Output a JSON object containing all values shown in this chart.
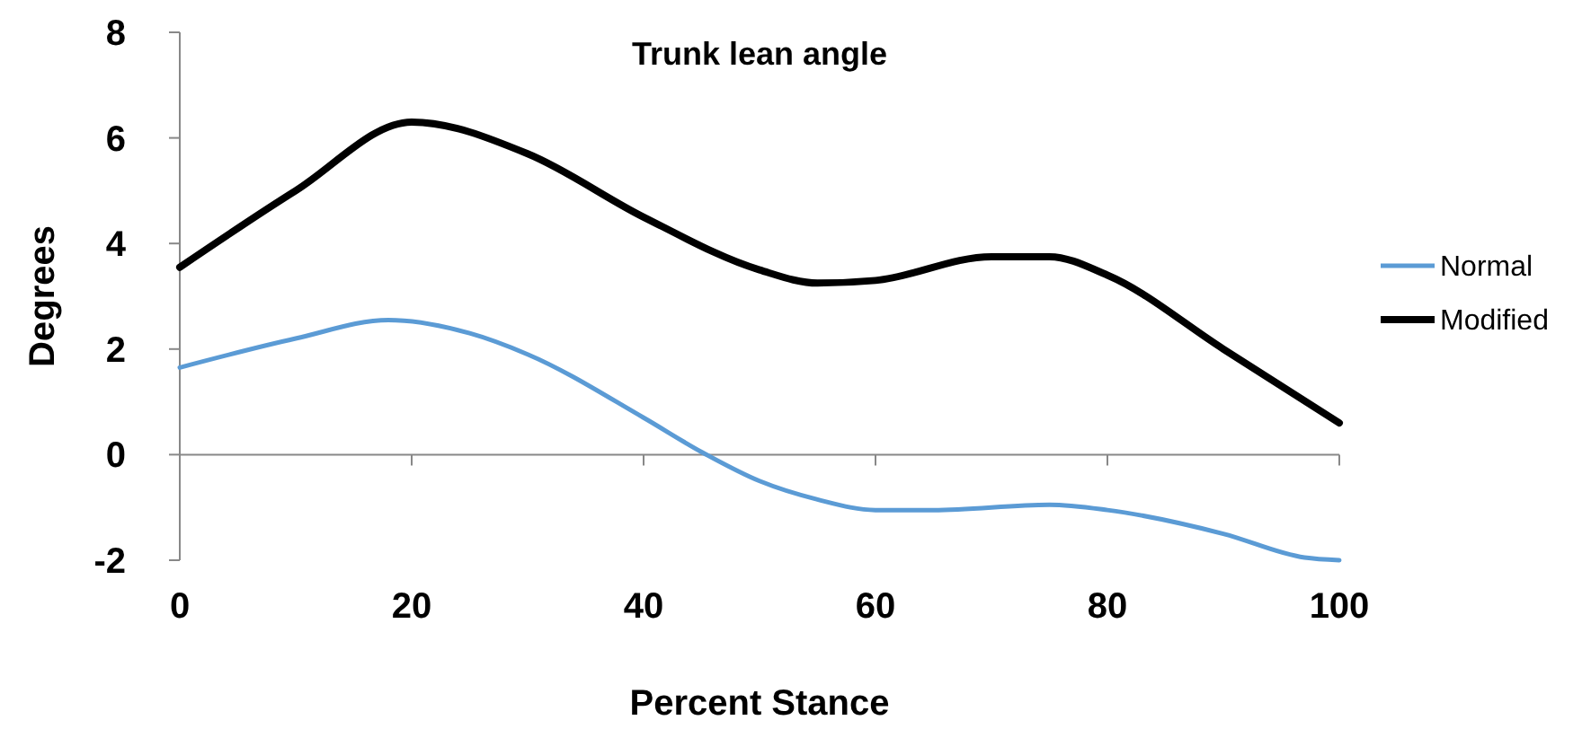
{
  "chart_data": {
    "type": "line",
    "title": "Trunk lean angle",
    "xlabel": "Percent Stance",
    "ylabel": "Degrees",
    "xlim": [
      0,
      100
    ],
    "xticks": [
      0,
      20,
      40,
      60,
      80,
      100
    ],
    "ylim": [
      -2,
      8
    ],
    "yticks": [
      -2,
      0,
      2,
      4,
      6,
      8
    ],
    "legend": "right",
    "series": [
      {
        "name": "Normal",
        "color": "#5b9bd5",
        "x": [
          0,
          10,
          18,
          25,
          30,
          40,
          45,
          50,
          55,
          60,
          65,
          75,
          80,
          90,
          97,
          100
        ],
        "values": [
          1.65,
          2.2,
          2.55,
          2.3,
          1.9,
          0.7,
          0.05,
          -0.5,
          -0.85,
          -1.05,
          -1.05,
          -0.95,
          -1.05,
          -1.5,
          -1.95,
          -2.0
        ]
      },
      {
        "name": "Modified",
        "color": "#000000",
        "x": [
          0,
          10,
          20,
          30,
          40,
          50,
          55,
          60,
          70,
          75,
          80,
          90,
          100
        ],
        "values": [
          3.55,
          5.0,
          6.3,
          5.7,
          4.5,
          3.5,
          3.25,
          3.3,
          3.75,
          3.75,
          3.4,
          2.0,
          0.6
        ]
      }
    ]
  }
}
